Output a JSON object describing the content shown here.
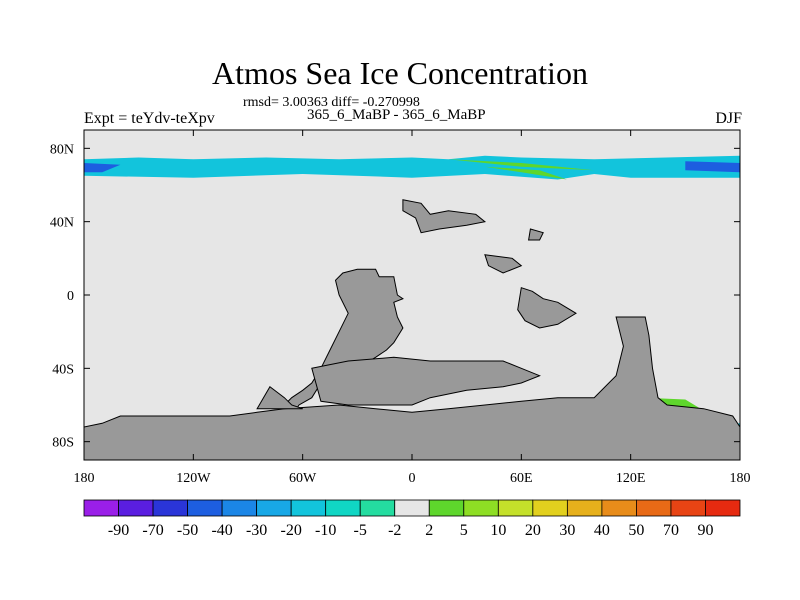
{
  "title": "Atmos Sea Ice Concentration",
  "stats_line": "rmsd= 3.00363  diff= -0.270998",
  "diff_line": "365_6_MaBP - 365_6_MaBP",
  "expt_label": "Expt = teYdv-teXpv",
  "season_label": "DJF",
  "chart_data": {
    "type": "heatmap",
    "xlim": [
      -180,
      180
    ],
    "ylim": [
      -90,
      90
    ],
    "x_ticks": [
      {
        "value": -180,
        "label": "180"
      },
      {
        "value": -120,
        "label": "120W"
      },
      {
        "value": -60,
        "label": "60W"
      },
      {
        "value": 0,
        "label": "0"
      },
      {
        "value": 60,
        "label": "60E"
      },
      {
        "value": 120,
        "label": "120E"
      },
      {
        "value": 180,
        "label": "180"
      }
    ],
    "y_ticks": [
      {
        "value": 80,
        "label": "80N"
      },
      {
        "value": 40,
        "label": "40N"
      },
      {
        "value": 0,
        "label": "0"
      },
      {
        "value": -40,
        "label": "40S"
      },
      {
        "value": -80,
        "label": "80S"
      }
    ],
    "colors": {
      "ocean_background": "#e6e6e6",
      "land": "#999999",
      "land_outline": "#000000"
    },
    "colorbar": {
      "labels": [
        "-90",
        "-70",
        "-50",
        "-40",
        "-30",
        "-20",
        "-10",
        "-5",
        "-2",
        "2",
        "5",
        "10",
        "20",
        "30",
        "40",
        "50",
        "70",
        "90"
      ],
      "colors": [
        "#9a1fe8",
        "#5a1ee0",
        "#2a35d8",
        "#1d5ee0",
        "#1b86e6",
        "#18a8e6",
        "#12c4dc",
        "#10d6c4",
        "#24dca0",
        "#e6e6e6",
        "#5ed62c",
        "#8ede24",
        "#c4e02a",
        "#e2d01e",
        "#e6b01c",
        "#e88c1a",
        "#e86a16",
        "#e84414",
        "#e62a10"
      ]
    },
    "fields": [
      {
        "name": "arctic_band",
        "value_range": "-40 to -10",
        "color": "#12c4dc",
        "polygon": [
          [
            -180,
            74
          ],
          [
            -150,
            75
          ],
          [
            -120,
            74
          ],
          [
            -80,
            75
          ],
          [
            -40,
            74
          ],
          [
            0,
            75
          ],
          [
            20,
            74
          ],
          [
            40,
            76
          ],
          [
            60,
            75
          ],
          [
            100,
            74
          ],
          [
            180,
            76
          ],
          [
            180,
            64
          ],
          [
            120,
            64
          ],
          [
            100,
            66
          ],
          [
            80,
            63
          ],
          [
            40,
            66
          ],
          [
            0,
            64
          ],
          [
            -60,
            66
          ],
          [
            -120,
            64
          ],
          [
            -180,
            65
          ]
        ]
      },
      {
        "name": "arctic_core",
        "value_range": "-50 to -40",
        "color": "#1d5ee0",
        "polygon": [
          [
            -180,
            72
          ],
          [
            -160,
            71
          ],
          [
            -170,
            67
          ],
          [
            -180,
            67
          ]
        ]
      },
      {
        "name": "arctic_core_east",
        "value_range": "-50 to -40",
        "color": "#1d5ee0",
        "polygon": [
          [
            150,
            73
          ],
          [
            180,
            72
          ],
          [
            180,
            67
          ],
          [
            150,
            68
          ]
        ]
      },
      {
        "name": "arctic_positive_streak",
        "value_range": "5 to 10",
        "color": "#5ed62c",
        "polygon": [
          [
            20,
            74
          ],
          [
            60,
            72
          ],
          [
            100,
            68
          ],
          [
            60,
            70
          ]
        ]
      },
      {
        "name": "arctic_positive_streak2",
        "value_range": "5 to 10",
        "color": "#5ed62c",
        "polygon": [
          [
            40,
            70
          ],
          [
            70,
            68
          ],
          [
            85,
            63
          ],
          [
            60,
            67
          ]
        ]
      },
      {
        "name": "antarctic_band_west",
        "value_range": "-10 to -2",
        "color": "#12c4dc",
        "polygon": [
          [
            -180,
            -72
          ],
          [
            -160,
            -73
          ],
          [
            -140,
            -72
          ],
          [
            -100,
            -72
          ],
          [
            -80,
            -73
          ],
          [
            -60,
            -74
          ],
          [
            -60,
            -80
          ],
          [
            -100,
            -79
          ],
          [
            -140,
            -78
          ],
          [
            -180,
            -78
          ]
        ]
      },
      {
        "name": "antarctic_positive_west",
        "value_range": "5 to 20",
        "color": "#5ed62c",
        "polygon": [
          [
            -160,
            -74
          ],
          [
            -120,
            -74
          ],
          [
            -90,
            -76
          ],
          [
            -110,
            -78
          ],
          [
            -150,
            -78
          ]
        ]
      },
      {
        "name": "antarctic_positive_weddell",
        "value_range": "5 to 10",
        "color": "#5ed62c",
        "polygon": [
          [
            -62,
            -75
          ],
          [
            -40,
            -73
          ],
          [
            -38,
            -80
          ],
          [
            -60,
            -80
          ]
        ]
      },
      {
        "name": "antarctic_positive_east",
        "value_range": "5 to 20",
        "color": "#5ed62c",
        "polygon": [
          [
            128,
            -56
          ],
          [
            150,
            -57
          ],
          [
            165,
            -66
          ],
          [
            170,
            -76
          ],
          [
            150,
            -80
          ],
          [
            128,
            -80
          ],
          [
            126,
            -68
          ]
        ]
      },
      {
        "name": "antarctic_positive_east_spot",
        "value_range": "20 to 30",
        "color": "#c4e02a",
        "polygon": [
          [
            138,
            -70
          ],
          [
            148,
            -68
          ],
          [
            150,
            -76
          ],
          [
            140,
            -78
          ]
        ]
      },
      {
        "name": "antarctic_band_east",
        "value_range": "-10 to -2",
        "color": "#12c4dc",
        "polygon": [
          [
            160,
            -72
          ],
          [
            180,
            -70
          ],
          [
            180,
            -78
          ],
          [
            165,
            -76
          ]
        ]
      }
    ],
    "land": [
      {
        "name": "northern_island",
        "polygon": [
          [
            -5,
            52
          ],
          [
            5,
            50
          ],
          [
            10,
            44
          ],
          [
            20,
            46
          ],
          [
            35,
            44
          ],
          [
            40,
            40
          ],
          [
            30,
            38
          ],
          [
            15,
            36
          ],
          [
            5,
            34
          ],
          [
            2,
            42
          ],
          [
            -5,
            46
          ]
        ]
      },
      {
        "name": "small_island_east",
        "polygon": [
          [
            40,
            22
          ],
          [
            55,
            20
          ],
          [
            60,
            16
          ],
          [
            50,
            12
          ],
          [
            42,
            16
          ]
        ]
      },
      {
        "name": "small_island_northeast",
        "polygon": [
          [
            65,
            36
          ],
          [
            72,
            34
          ],
          [
            70,
            30
          ],
          [
            64,
            30
          ]
        ]
      },
      {
        "name": "central_continent",
        "polygon": [
          [
            -30,
            14
          ],
          [
            -20,
            14
          ],
          [
            -18,
            10
          ],
          [
            -10,
            10
          ],
          [
            -8,
            0
          ],
          [
            -5,
            -2
          ],
          [
            -10,
            -4
          ],
          [
            -8,
            -12
          ],
          [
            -5,
            -18
          ],
          [
            -10,
            -26
          ],
          [
            -14,
            -30
          ],
          [
            -20,
            -34
          ],
          [
            -30,
            -40
          ],
          [
            -40,
            -42
          ],
          [
            -50,
            -48
          ],
          [
            -55,
            -56
          ],
          [
            -62,
            -60
          ],
          [
            -66,
            -66
          ],
          [
            -70,
            -68
          ],
          [
            -70,
            -60
          ],
          [
            -66,
            -56
          ],
          [
            -60,
            -52
          ],
          [
            -55,
            -48
          ],
          [
            -50,
            -40
          ],
          [
            -45,
            -30
          ],
          [
            -40,
            -20
          ],
          [
            -35,
            -10
          ],
          [
            -40,
            0
          ],
          [
            -42,
            8
          ],
          [
            -38,
            12
          ]
        ]
      },
      {
        "name": "lower_mass",
        "polygon": [
          [
            -55,
            -40
          ],
          [
            -35,
            -36
          ],
          [
            -10,
            -34
          ],
          [
            10,
            -36
          ],
          [
            30,
            -36
          ],
          [
            50,
            -36
          ],
          [
            60,
            -40
          ],
          [
            70,
            -44
          ],
          [
            60,
            -48
          ],
          [
            50,
            -50
          ],
          [
            30,
            -52
          ],
          [
            10,
            -56
          ],
          [
            0,
            -60
          ],
          [
            -20,
            -60
          ],
          [
            -35,
            -60
          ],
          [
            -50,
            -58
          ]
        ]
      },
      {
        "name": "northeast_arc",
        "polygon": [
          [
            60,
            4
          ],
          [
            66,
            2
          ],
          [
            72,
            -2
          ],
          [
            80,
            -4
          ],
          [
            90,
            -10
          ],
          [
            80,
            -16
          ],
          [
            70,
            -18
          ],
          [
            62,
            -14
          ],
          [
            58,
            -8
          ]
        ]
      },
      {
        "name": "eastern_block",
        "polygon": [
          [
            112,
            -12
          ],
          [
            128,
            -12
          ],
          [
            130,
            -22
          ],
          [
            132,
            -40
          ],
          [
            135,
            -56
          ],
          [
            140,
            -60
          ],
          [
            160,
            -62
          ],
          [
            176,
            -66
          ],
          [
            180,
            -72
          ],
          [
            180,
            -90
          ],
          [
            -180,
            -90
          ],
          [
            -180,
            -72
          ],
          [
            -170,
            -70
          ],
          [
            -160,
            -66
          ],
          [
            -140,
            -66
          ],
          [
            -100,
            -66
          ],
          [
            -85,
            -64
          ],
          [
            -70,
            -62
          ],
          [
            -40,
            -60
          ],
          [
            -20,
            -62
          ],
          [
            0,
            -64
          ],
          [
            20,
            -62
          ],
          [
            40,
            -60
          ],
          [
            60,
            -58
          ],
          [
            80,
            -56
          ],
          [
            100,
            -56
          ],
          [
            112,
            -44
          ],
          [
            116,
            -28
          ]
        ]
      },
      {
        "name": "southwest_ridge",
        "polygon": [
          [
            -85,
            -62
          ],
          [
            -78,
            -50
          ],
          [
            -70,
            -56
          ],
          [
            -66,
            -60
          ],
          [
            -60,
            -62
          ],
          [
            -70,
            -62
          ]
        ]
      }
    ],
    "x_axis_label": "",
    "y_axis_label": ""
  }
}
